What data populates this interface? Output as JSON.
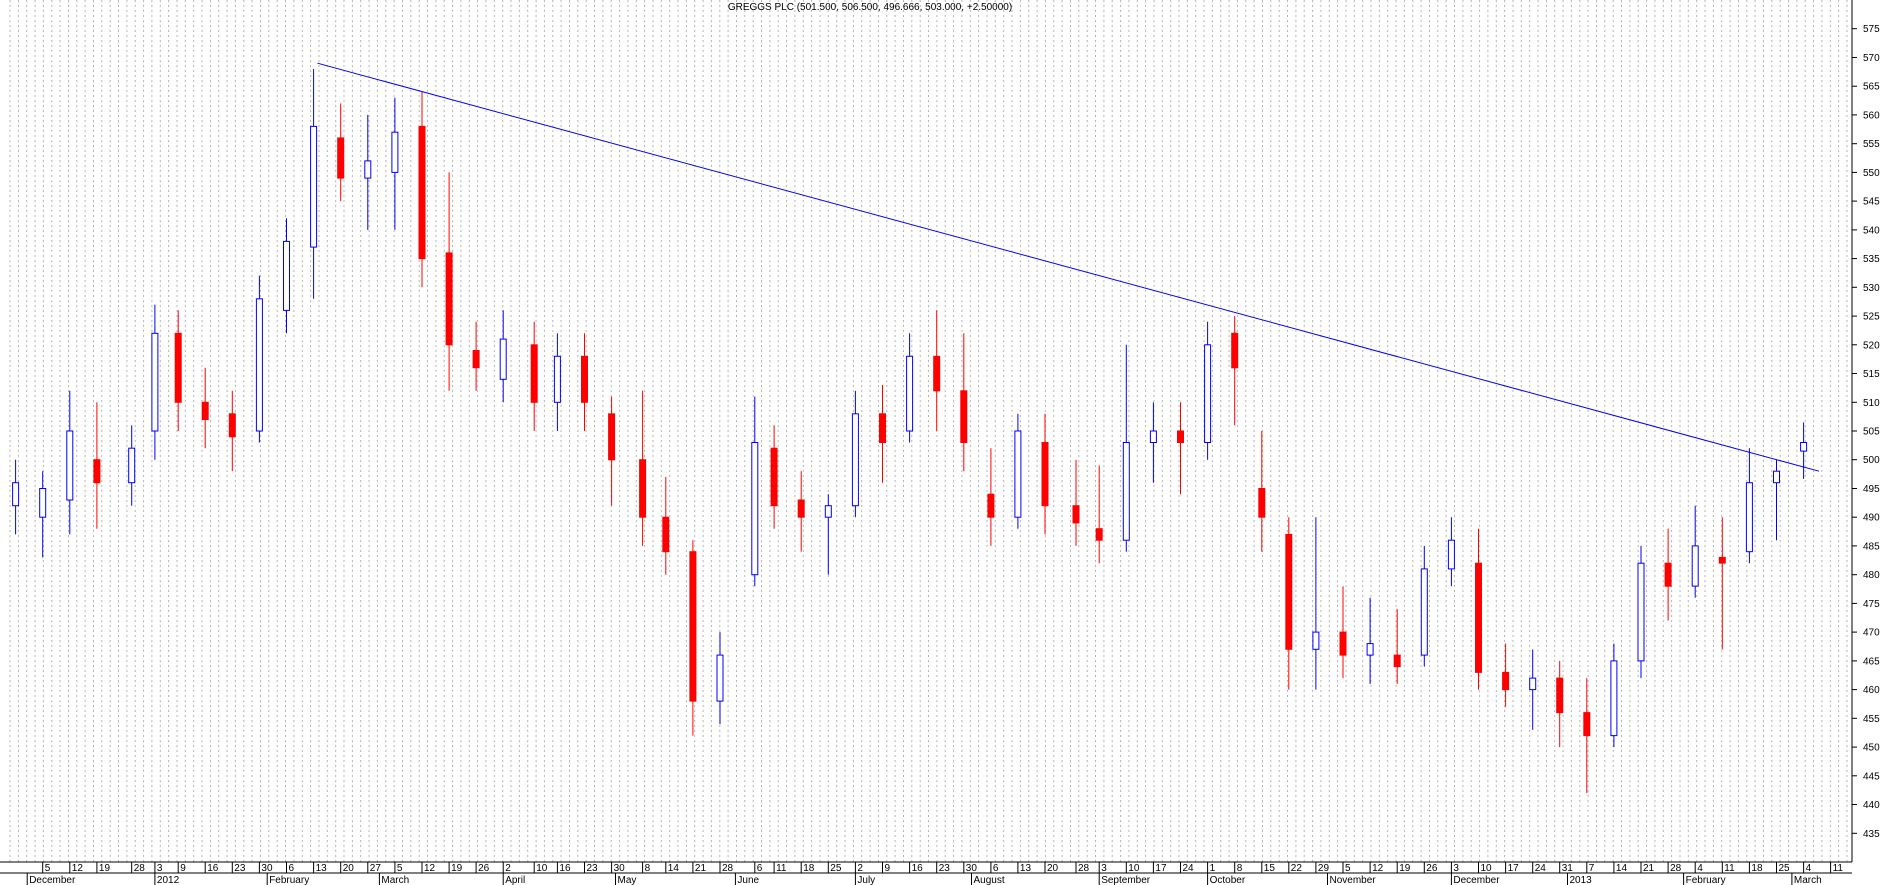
{
  "chart_data": {
    "type": "candlestick",
    "title": "GREGGS PLC (501.500, 506.500, 496.666, 503.000, +2.50000)",
    "ylim": [
      430,
      580
    ],
    "y_ticks": [
      435,
      440,
      445,
      450,
      455,
      460,
      465,
      470,
      475,
      480,
      485,
      490,
      495,
      500,
      505,
      510,
      515,
      520,
      525,
      530,
      535,
      540,
      545,
      550,
      555,
      560,
      565,
      570,
      575
    ],
    "grid": "vertical-dotted",
    "colors": {
      "up": "#0000ff",
      "down": "#ff0000",
      "trendline": "#0000ff",
      "grid": "#b4b4b4",
      "axis": "#000000"
    },
    "x_tick_labels": [
      {
        "label": "5",
        "date": "2011-12-05"
      },
      {
        "label": "12",
        "date": "2011-12-12"
      },
      {
        "label": "19",
        "date": "2011-12-19"
      },
      {
        "label": "28",
        "date": "2011-12-28"
      },
      {
        "label": "3",
        "date": "2012-01-03"
      },
      {
        "label": "9",
        "date": "2012-01-09"
      },
      {
        "label": "16",
        "date": "2012-01-16"
      },
      {
        "label": "23",
        "date": "2012-01-23"
      },
      {
        "label": "30",
        "date": "2012-01-30"
      },
      {
        "label": "6",
        "date": "2012-02-06"
      },
      {
        "label": "13",
        "date": "2012-02-13"
      },
      {
        "label": "20",
        "date": "2012-02-20"
      },
      {
        "label": "27",
        "date": "2012-02-27"
      },
      {
        "label": "5",
        "date": "2012-03-05"
      },
      {
        "label": "12",
        "date": "2012-03-12"
      },
      {
        "label": "19",
        "date": "2012-03-19"
      },
      {
        "label": "26",
        "date": "2012-03-26"
      },
      {
        "label": "2",
        "date": "2012-04-02"
      },
      {
        "label": "10",
        "date": "2012-04-10"
      },
      {
        "label": "16",
        "date": "2012-04-16"
      },
      {
        "label": "23",
        "date": "2012-04-23"
      },
      {
        "label": "30",
        "date": "2012-04-30"
      },
      {
        "label": "8",
        "date": "2012-05-08"
      },
      {
        "label": "14",
        "date": "2012-05-14"
      },
      {
        "label": "21",
        "date": "2012-05-21"
      },
      {
        "label": "28",
        "date": "2012-05-28"
      },
      {
        "label": "6",
        "date": "2012-06-06"
      },
      {
        "label": "11",
        "date": "2012-06-11"
      },
      {
        "label": "18",
        "date": "2012-06-18"
      },
      {
        "label": "25",
        "date": "2012-06-25"
      },
      {
        "label": "2",
        "date": "2012-07-02"
      },
      {
        "label": "9",
        "date": "2012-07-09"
      },
      {
        "label": "16",
        "date": "2012-07-16"
      },
      {
        "label": "23",
        "date": "2012-07-23"
      },
      {
        "label": "30",
        "date": "2012-07-30"
      },
      {
        "label": "6",
        "date": "2012-08-06"
      },
      {
        "label": "13",
        "date": "2012-08-13"
      },
      {
        "label": "20",
        "date": "2012-08-20"
      },
      {
        "label": "28",
        "date": "2012-08-28"
      },
      {
        "label": "3",
        "date": "2012-09-03"
      },
      {
        "label": "10",
        "date": "2012-09-10"
      },
      {
        "label": "17",
        "date": "2012-09-17"
      },
      {
        "label": "24",
        "date": "2012-09-24"
      },
      {
        "label": "1",
        "date": "2012-10-01"
      },
      {
        "label": "8",
        "date": "2012-10-08"
      },
      {
        "label": "15",
        "date": "2012-10-15"
      },
      {
        "label": "22",
        "date": "2012-10-22"
      },
      {
        "label": "29",
        "date": "2012-10-29"
      },
      {
        "label": "5",
        "date": "2012-11-05"
      },
      {
        "label": "12",
        "date": "2012-11-12"
      },
      {
        "label": "19",
        "date": "2012-11-19"
      },
      {
        "label": "26",
        "date": "2012-11-26"
      },
      {
        "label": "3",
        "date": "2012-12-03"
      },
      {
        "label": "10",
        "date": "2012-12-10"
      },
      {
        "label": "17",
        "date": "2012-12-17"
      },
      {
        "label": "24",
        "date": "2012-12-24"
      },
      {
        "label": "31",
        "date": "2012-12-31"
      },
      {
        "label": "7",
        "date": "2013-01-07"
      },
      {
        "label": "14",
        "date": "2013-01-14"
      },
      {
        "label": "21",
        "date": "2013-01-21"
      },
      {
        "label": "28",
        "date": "2013-01-28"
      },
      {
        "label": "4",
        "date": "2013-02-04"
      },
      {
        "label": "11",
        "date": "2013-02-11"
      },
      {
        "label": "18",
        "date": "2013-02-18"
      },
      {
        "label": "25",
        "date": "2013-02-25"
      },
      {
        "label": "4",
        "date": "2013-03-04"
      },
      {
        "label": "11",
        "date": "2013-03-11"
      }
    ],
    "x_period_labels": [
      {
        "label": "December",
        "date": "2011-12-01"
      },
      {
        "label": "2012",
        "date": "2012-01-03"
      },
      {
        "label": "February",
        "date": "2012-02-01"
      },
      {
        "label": "March",
        "date": "2012-03-01"
      },
      {
        "label": "April",
        "date": "2012-04-02"
      },
      {
        "label": "May",
        "date": "2012-05-01"
      },
      {
        "label": "June",
        "date": "2012-06-01"
      },
      {
        "label": "July",
        "date": "2012-07-02"
      },
      {
        "label": "August",
        "date": "2012-08-01"
      },
      {
        "label": "September",
        "date": "2012-09-03"
      },
      {
        "label": "October",
        "date": "2012-10-01"
      },
      {
        "label": "November",
        "date": "2012-11-01"
      },
      {
        "label": "December",
        "date": "2012-12-03"
      },
      {
        "label": "2013",
        "date": "2013-01-02"
      },
      {
        "label": "February",
        "date": "2013-02-01"
      },
      {
        "label": "March",
        "date": "2013-03-01"
      }
    ],
    "trendline": [
      {
        "date": "2012-02-14",
        "value": 569
      },
      {
        "date": "2013-03-08",
        "value": 498
      }
    ],
    "candles": [
      {
        "date": "2011-11-28",
        "open": 492,
        "high": 500,
        "low": 487,
        "close": 496
      },
      {
        "date": "2011-12-05",
        "open": 490,
        "high": 498,
        "low": 483,
        "close": 495
      },
      {
        "date": "2011-12-12",
        "open": 493,
        "high": 512,
        "low": 487,
        "close": 505
      },
      {
        "date": "2011-12-19",
        "open": 500,
        "high": 510,
        "low": 488,
        "close": 496
      },
      {
        "date": "2011-12-28",
        "open": 496,
        "high": 506,
        "low": 492,
        "close": 502
      },
      {
        "date": "2012-01-03",
        "open": 505,
        "high": 527,
        "low": 500,
        "close": 522
      },
      {
        "date": "2012-01-09",
        "open": 522,
        "high": 526,
        "low": 505,
        "close": 510
      },
      {
        "date": "2012-01-16",
        "open": 510,
        "high": 516,
        "low": 502,
        "close": 507
      },
      {
        "date": "2012-01-23",
        "open": 508,
        "high": 512,
        "low": 498,
        "close": 504
      },
      {
        "date": "2012-01-30",
        "open": 505,
        "high": 532,
        "low": 503,
        "close": 528
      },
      {
        "date": "2012-02-06",
        "open": 526,
        "high": 542,
        "low": 522,
        "close": 538
      },
      {
        "date": "2012-02-13",
        "open": 537,
        "high": 568,
        "low": 528,
        "close": 558
      },
      {
        "date": "2012-02-20",
        "open": 556,
        "high": 562,
        "low": 545,
        "close": 549
      },
      {
        "date": "2012-02-27",
        "open": 549,
        "high": 560,
        "low": 540,
        "close": 552
      },
      {
        "date": "2012-03-05",
        "open": 550,
        "high": 563,
        "low": 540,
        "close": 557
      },
      {
        "date": "2012-03-12",
        "open": 558,
        "high": 564,
        "low": 530,
        "close": 535
      },
      {
        "date": "2012-03-19",
        "open": 536,
        "high": 550,
        "low": 512,
        "close": 520
      },
      {
        "date": "2012-03-26",
        "open": 519,
        "high": 524,
        "low": 512,
        "close": 516
      },
      {
        "date": "2012-04-02",
        "open": 514,
        "high": 526,
        "low": 510,
        "close": 521
      },
      {
        "date": "2012-04-10",
        "open": 520,
        "high": 524,
        "low": 505,
        "close": 510
      },
      {
        "date": "2012-04-16",
        "open": 510,
        "high": 522,
        "low": 505,
        "close": 518
      },
      {
        "date": "2012-04-23",
        "open": 518,
        "high": 522,
        "low": 505,
        "close": 510
      },
      {
        "date": "2012-04-30",
        "open": 508,
        "high": 511,
        "low": 492,
        "close": 500
      },
      {
        "date": "2012-05-08",
        "open": 500,
        "high": 512,
        "low": 485,
        "close": 490
      },
      {
        "date": "2012-05-14",
        "open": 490,
        "high": 497,
        "low": 480,
        "close": 484
      },
      {
        "date": "2012-05-21",
        "open": 484,
        "high": 486,
        "low": 452,
        "close": 458
      },
      {
        "date": "2012-05-28",
        "open": 458,
        "high": 470,
        "low": 454,
        "close": 466
      },
      {
        "date": "2012-06-06",
        "open": 480,
        "high": 511,
        "low": 478,
        "close": 503
      },
      {
        "date": "2012-06-11",
        "open": 502,
        "high": 506,
        "low": 488,
        "close": 492
      },
      {
        "date": "2012-06-18",
        "open": 493,
        "high": 498,
        "low": 484,
        "close": 490
      },
      {
        "date": "2012-06-25",
        "open": 490,
        "high": 494,
        "low": 480,
        "close": 492
      },
      {
        "date": "2012-07-02",
        "open": 492,
        "high": 512,
        "low": 490,
        "close": 508
      },
      {
        "date": "2012-07-09",
        "open": 508,
        "high": 513,
        "low": 496,
        "close": 503
      },
      {
        "date": "2012-07-16",
        "open": 505,
        "high": 522,
        "low": 503,
        "close": 518
      },
      {
        "date": "2012-07-23",
        "open": 518,
        "high": 526,
        "low": 505,
        "close": 512
      },
      {
        "date": "2012-07-30",
        "open": 512,
        "high": 522,
        "low": 498,
        "close": 503
      },
      {
        "date": "2012-08-06",
        "open": 494,
        "high": 502,
        "low": 485,
        "close": 490
      },
      {
        "date": "2012-08-13",
        "open": 490,
        "high": 508,
        "low": 488,
        "close": 505
      },
      {
        "date": "2012-08-20",
        "open": 503,
        "high": 508,
        "low": 487,
        "close": 492
      },
      {
        "date": "2012-08-28",
        "open": 492,
        "high": 500,
        "low": 485,
        "close": 489
      },
      {
        "date": "2012-09-03",
        "open": 488,
        "high": 499,
        "low": 482,
        "close": 486
      },
      {
        "date": "2012-09-10",
        "open": 486,
        "high": 520,
        "low": 484,
        "close": 503
      },
      {
        "date": "2012-09-17",
        "open": 503,
        "high": 510,
        "low": 496,
        "close": 505
      },
      {
        "date": "2012-09-24",
        "open": 505,
        "high": 510,
        "low": 494,
        "close": 503
      },
      {
        "date": "2012-10-01",
        "open": 503,
        "high": 524,
        "low": 500,
        "close": 520
      },
      {
        "date": "2012-10-08",
        "open": 522,
        "high": 525,
        "low": 506,
        "close": 516
      },
      {
        "date": "2012-10-15",
        "open": 495,
        "high": 505,
        "low": 484,
        "close": 490
      },
      {
        "date": "2012-10-22",
        "open": 487,
        "high": 490,
        "low": 460,
        "close": 467
      },
      {
        "date": "2012-10-29",
        "open": 467,
        "high": 490,
        "low": 460,
        "close": 470
      },
      {
        "date": "2012-11-05",
        "open": 470,
        "high": 478,
        "low": 462,
        "close": 466
      },
      {
        "date": "2012-11-12",
        "open": 466,
        "high": 476,
        "low": 461,
        "close": 468
      },
      {
        "date": "2012-11-19",
        "open": 466,
        "high": 474,
        "low": 461,
        "close": 464
      },
      {
        "date": "2012-11-26",
        "open": 466,
        "high": 485,
        "low": 464,
        "close": 481
      },
      {
        "date": "2012-12-03",
        "open": 481,
        "high": 490,
        "low": 478,
        "close": 486
      },
      {
        "date": "2012-12-10",
        "open": 482,
        "high": 488,
        "low": 460,
        "close": 463
      },
      {
        "date": "2012-12-17",
        "open": 463,
        "high": 468,
        "low": 457,
        "close": 460
      },
      {
        "date": "2012-12-24",
        "open": 460,
        "high": 467,
        "low": 453,
        "close": 462
      },
      {
        "date": "2012-12-31",
        "open": 462,
        "high": 465,
        "low": 450,
        "close": 456
      },
      {
        "date": "2013-01-07",
        "open": 456,
        "high": 462,
        "low": 442,
        "close": 452
      },
      {
        "date": "2013-01-14",
        "open": 452,
        "high": 468,
        "low": 450,
        "close": 465
      },
      {
        "date": "2013-01-21",
        "open": 465,
        "high": 485,
        "low": 462,
        "close": 482
      },
      {
        "date": "2013-01-28",
        "open": 482,
        "high": 488,
        "low": 472,
        "close": 478
      },
      {
        "date": "2013-02-04",
        "open": 478,
        "high": 492,
        "low": 476,
        "close": 485
      },
      {
        "date": "2013-02-11",
        "open": 483,
        "high": 490,
        "low": 467,
        "close": 482
      },
      {
        "date": "2013-02-18",
        "open": 484,
        "high": 502,
        "low": 482,
        "close": 496
      },
      {
        "date": "2013-02-25",
        "open": 496,
        "high": 500,
        "low": 486,
        "close": 498
      },
      {
        "date": "2013-03-04",
        "open": 501.5,
        "high": 506.5,
        "low": 496.666,
        "close": 503
      }
    ]
  }
}
